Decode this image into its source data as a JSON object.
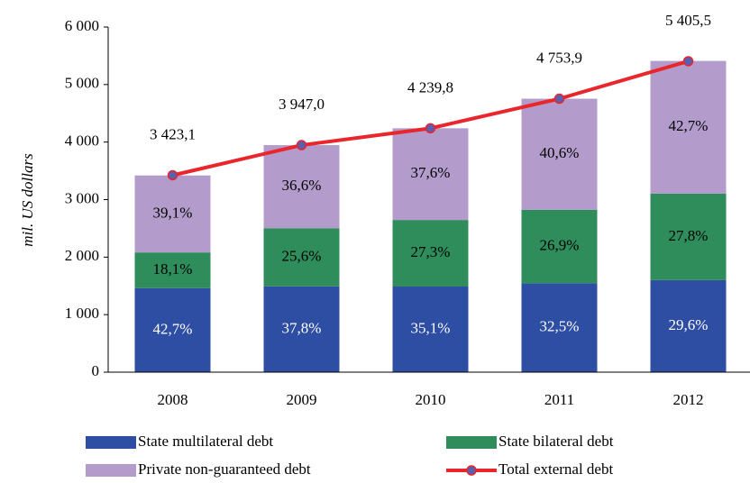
{
  "chart_data": {
    "type": "bar",
    "y_label": "mil. US dollars",
    "categories": [
      "2008",
      "2009",
      "2010",
      "2011",
      "2012"
    ],
    "ylim": [
      0,
      6000
    ],
    "yticks": [
      0,
      {
        "value": 1000,
        "label": "1 000"
      },
      {
        "value": 2000,
        "label": "2 000"
      },
      {
        "value": 3000,
        "label": "3 000"
      },
      {
        "value": 4000,
        "label": "4 000"
      },
      {
        "value": 5000,
        "label": "5 000"
      },
      {
        "value": 6000,
        "label": "6 000"
      }
    ],
    "series": [
      {
        "name": "State multilateral debt",
        "type": "bar",
        "color": "#2e4ea3",
        "label_color": "#ffffff",
        "values": [
          1461.7,
          1492.0,
          1488.2,
          1545.0,
          1600.0
        ],
        "labels": [
          "42,7%",
          "37,8%",
          "35,1%",
          "32,5%",
          "29,6%"
        ]
      },
      {
        "name": "State bilateral debt",
        "type": "bar",
        "color": "#2f8c5b",
        "label_color": "#000000",
        "values": [
          619.6,
          1010.4,
          1157.5,
          1278.8,
          1502.7
        ],
        "labels": [
          "18,1%",
          "25,6%",
          "27,3%",
          "26,9%",
          "27,8%"
        ]
      },
      {
        "name": "Private non-guaranteed debt",
        "type": "bar",
        "color": "#b39ccb",
        "label_color": "#000000",
        "values": [
          1338.4,
          1444.6,
          1594.2,
          1930.1,
          2308.1
        ],
        "labels": [
          "39,1%",
          "36,6%",
          "37,6%",
          "40,6%",
          "42,7%"
        ]
      },
      {
        "name": "Total external debt",
        "type": "line",
        "color": "#e8262b",
        "marker_color": "#5b5fb0",
        "values": [
          3423.1,
          3947.0,
          4239.8,
          4753.9,
          5405.5
        ],
        "value_labels": [
          "3 423,1",
          "3 947,0",
          "4 239,8",
          "4 753,9",
          "5 405,5"
        ]
      }
    ]
  }
}
